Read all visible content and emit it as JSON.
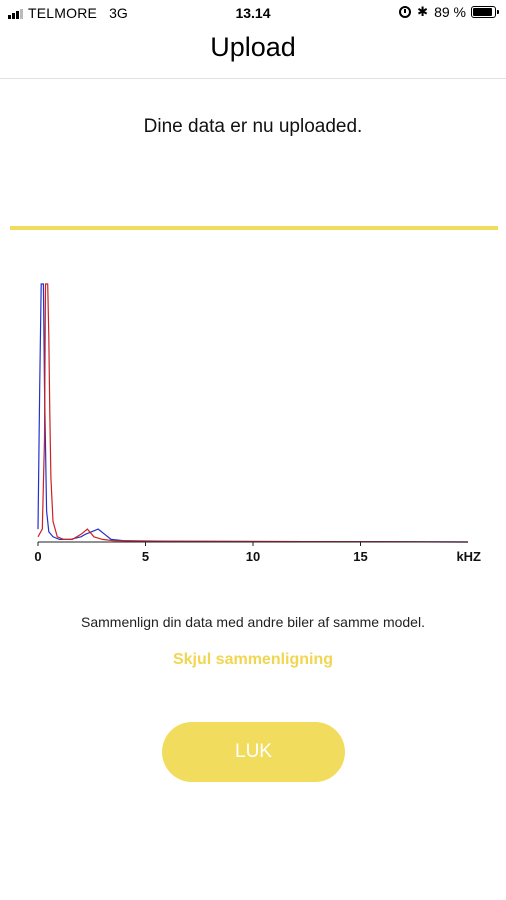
{
  "status_bar": {
    "carrier": "TELMORE",
    "network": "3G",
    "time": "13.14",
    "battery_percent": "89 %",
    "battery_level": 0.89,
    "icons": [
      "signal-icon",
      "alarm-icon",
      "bluetooth-icon",
      "battery-icon"
    ]
  },
  "nav": {
    "title": "Upload"
  },
  "upload": {
    "message": "Dine data er nu uploaded.",
    "progress": 1.0,
    "accent_color": "#f2dc5d"
  },
  "chart_data": {
    "type": "line",
    "xlabel": "kHZ",
    "x_ticks": [
      "0",
      "5",
      "10",
      "15"
    ],
    "xlim": [
      0,
      20
    ],
    "ylim": [
      0,
      1
    ],
    "grid": false,
    "series": [
      {
        "color": "#2233cc",
        "x": [
          0,
          0.08,
          0.15,
          0.2,
          0.25,
          0.3,
          0.4,
          0.5,
          0.7,
          1.0,
          1.5,
          2.0,
          2.2,
          2.5,
          2.8,
          3.1,
          3.4,
          4.0,
          6.0,
          10.0,
          15.0,
          20.0
        ],
        "y": [
          0.05,
          0.6,
          1.0,
          1.0,
          1.0,
          0.6,
          0.12,
          0.04,
          0.02,
          0.01,
          0.01,
          0.02,
          0.03,
          0.04,
          0.05,
          0.03,
          0.01,
          0.005,
          0.003,
          0.002,
          0.001,
          0.0
        ]
      },
      {
        "color": "#cc2222",
        "x": [
          0,
          0.2,
          0.3,
          0.35,
          0.4,
          0.45,
          0.5,
          0.55,
          0.6,
          0.7,
          0.9,
          1.2,
          1.6,
          2.0,
          2.3,
          2.6,
          3.0,
          3.5,
          5.0,
          10.0,
          15.0,
          20.0
        ],
        "y": [
          0.02,
          0.05,
          0.4,
          1.0,
          1.0,
          1.0,
          0.8,
          0.5,
          0.25,
          0.08,
          0.02,
          0.01,
          0.01,
          0.03,
          0.05,
          0.02,
          0.01,
          0.005,
          0.003,
          0.002,
          0.001,
          0.0
        ]
      }
    ]
  },
  "compare": {
    "text": "Sammenlign din data med andre biler af samme model.",
    "hide_link": "Skjul sammenligning"
  },
  "close_button": {
    "label": "LUK"
  }
}
